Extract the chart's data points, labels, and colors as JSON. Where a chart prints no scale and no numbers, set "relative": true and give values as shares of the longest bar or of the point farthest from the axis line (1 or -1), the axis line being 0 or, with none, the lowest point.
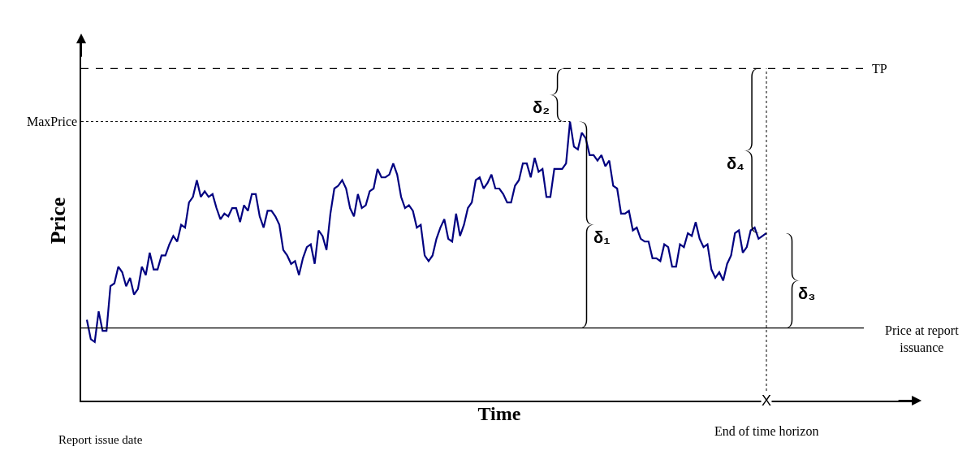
{
  "chart_data": {
    "type": "line",
    "relative": true,
    "xlabel": "Time",
    "ylabel": "Price",
    "categories": [
      null,
      null,
      null,
      null,
      null,
      null,
      null,
      null,
      null,
      null,
      null,
      null,
      null,
      null,
      null,
      null,
      null,
      null,
      null,
      null,
      null,
      null,
      null,
      null,
      null,
      null,
      null,
      null,
      null,
      null,
      null,
      null,
      null,
      null,
      null,
      null,
      null,
      null,
      null,
      null,
      null,
      null,
      null,
      null,
      null,
      null,
      null,
      null,
      null,
      null,
      null,
      null,
      null,
      null,
      null,
      null,
      null,
      null,
      null,
      null,
      null,
      null,
      null,
      null,
      null,
      null,
      null,
      null,
      null,
      null,
      null,
      null,
      null,
      null,
      null,
      null,
      null,
      null,
      null,
      null,
      null,
      null,
      null,
      null,
      null,
      null,
      null,
      null,
      null,
      null,
      null,
      null,
      null,
      null,
      null,
      null,
      null,
      null,
      null,
      null,
      null,
      null,
      null,
      null,
      null,
      null,
      null,
      null,
      null,
      null,
      null,
      null,
      null,
      null,
      null,
      null,
      null,
      null,
      null,
      null,
      null,
      null,
      null,
      null,
      null,
      null,
      null,
      null,
      null,
      null,
      null,
      null,
      null,
      null,
      null,
      null,
      null,
      null,
      null,
      null,
      null,
      null,
      null,
      null,
      null,
      null,
      null,
      null,
      null,
      null,
      null,
      null,
      null,
      null,
      null,
      null,
      null,
      null,
      null,
      null,
      null,
      null,
      null,
      null,
      null,
      null,
      null,
      null,
      null,
      null,
      null,
      null,
      null,
      null
    ],
    "series": [
      {
        "color": "#000080",
        "values": [
          0.29,
          0.22,
          0.21,
          0.32,
          0.25,
          0.25,
          0.41,
          0.42,
          0.48,
          0.46,
          0.41,
          0.44,
          0.38,
          0.4,
          0.48,
          0.45,
          0.53,
          0.47,
          0.47,
          0.52,
          0.52,
          0.56,
          0.59,
          0.57,
          0.63,
          0.62,
          0.71,
          0.73,
          0.79,
          0.73,
          0.75,
          0.73,
          0.74,
          0.69,
          0.65,
          0.67,
          0.66,
          0.69,
          0.69,
          0.64,
          0.7,
          0.68,
          0.74,
          0.74,
          0.66,
          0.62,
          0.68,
          0.68,
          0.66,
          0.63,
          0.54,
          0.52,
          0.49,
          0.5,
          0.45,
          0.51,
          0.55,
          0.56,
          0.49,
          0.61,
          0.59,
          0.54,
          0.67,
          0.76,
          0.77,
          0.79,
          0.76,
          0.69,
          0.66,
          0.74,
          0.69,
          0.7,
          0.75,
          0.76,
          0.83,
          0.8,
          0.8,
          0.81,
          0.85,
          0.81,
          0.73,
          0.69,
          0.7,
          0.68,
          0.62,
          0.63,
          0.52,
          0.5,
          0.52,
          0.58,
          0.62,
          0.65,
          0.58,
          0.57,
          0.67,
          0.59,
          0.63,
          0.69,
          0.71,
          0.79,
          0.8,
          0.76,
          0.78,
          0.81,
          0.76,
          0.76,
          0.74,
          0.71,
          0.71,
          0.77,
          0.79,
          0.85,
          0.85,
          0.8,
          0.87,
          0.82,
          0.83,
          0.73,
          0.73,
          0.83,
          0.83,
          0.83,
          0.85,
          1,
          0.91,
          0.9,
          0.96,
          0.94,
          0.88,
          0.88,
          0.86,
          0.88,
          0.84,
          0.86,
          0.77,
          0.76,
          0.67,
          0.67,
          0.68,
          0.61,
          0.62,
          0.58,
          0.57,
          0.57,
          0.51,
          0.51,
          0.5,
          0.56,
          0.55,
          0.48,
          0.48,
          0.56,
          0.55,
          0.6,
          0.59,
          0.64,
          0.58,
          0.55,
          0.56,
          0.47,
          0.44,
          0.46,
          0.43,
          0.49,
          0.52,
          0.6,
          0.61,
          0.53,
          0.55,
          0.61,
          0.62,
          0.58,
          0.59,
          0.6
        ]
      }
    ],
    "ref_lines": [
      {
        "axis": "y",
        "value": 1.19,
        "label": "TP",
        "line_style": "dashed",
        "color": "#000000"
      },
      {
        "axis": "y",
        "value": 1,
        "label": "MaxPrice",
        "line_style": "dotted",
        "color": "#000000"
      },
      {
        "axis": "y",
        "value": 0.26,
        "label": "Price at report issuance",
        "line_style": "solid",
        "color": "#000000"
      }
    ],
    "annotations": [
      "δ₁",
      "δ₂",
      "δ₃",
      "δ₄",
      "X",
      "Report issue date",
      "End of time horizon"
    ]
  }
}
